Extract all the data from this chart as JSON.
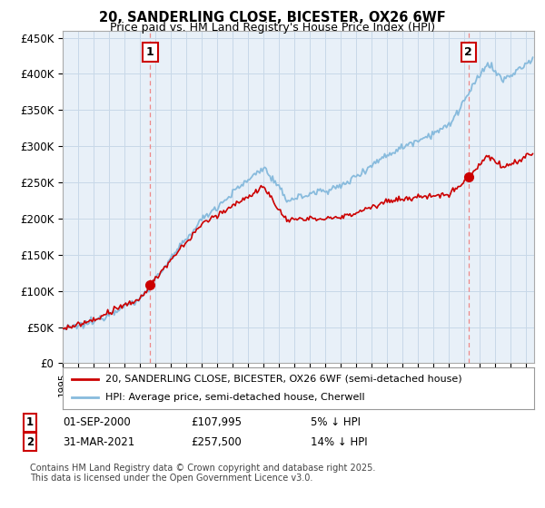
{
  "title_line1": "20, SANDERLING CLOSE, BICESTER, OX26 6WF",
  "title_line2": "Price paid vs. HM Land Registry's House Price Index (HPI)",
  "ylim": [
    0,
    460000
  ],
  "yticks": [
    0,
    50000,
    100000,
    150000,
    200000,
    250000,
    300000,
    350000,
    400000,
    450000
  ],
  "ytick_labels": [
    "£0",
    "£50K",
    "£100K",
    "£150K",
    "£200K",
    "£250K",
    "£300K",
    "£350K",
    "£400K",
    "£450K"
  ],
  "xlim_start": 1995.0,
  "xlim_end": 2025.5,
  "transaction1_date": 2000.67,
  "transaction1_price": 107995,
  "transaction1_label": "1",
  "transaction1_date_str": "01-SEP-2000",
  "transaction1_price_str": "£107,995",
  "transaction1_pct": "5% ↓ HPI",
  "transaction2_date": 2021.25,
  "transaction2_price": 257500,
  "transaction2_label": "2",
  "transaction2_date_str": "31-MAR-2021",
  "transaction2_price_str": "£257,500",
  "transaction2_pct": "14% ↓ HPI",
  "hpi_color": "#88bbdd",
  "price_color": "#cc0000",
  "vline_color": "#ee8888",
  "legend_label1": "20, SANDERLING CLOSE, BICESTER, OX26 6WF (semi-detached house)",
  "legend_label2": "HPI: Average price, semi-detached house, Cherwell",
  "footer": "Contains HM Land Registry data © Crown copyright and database right 2025.\nThis data is licensed under the Open Government Licence v3.0.",
  "background_color": "#ffffff",
  "plot_bg_color": "#e8f0f8",
  "grid_color": "#c8d8e8"
}
